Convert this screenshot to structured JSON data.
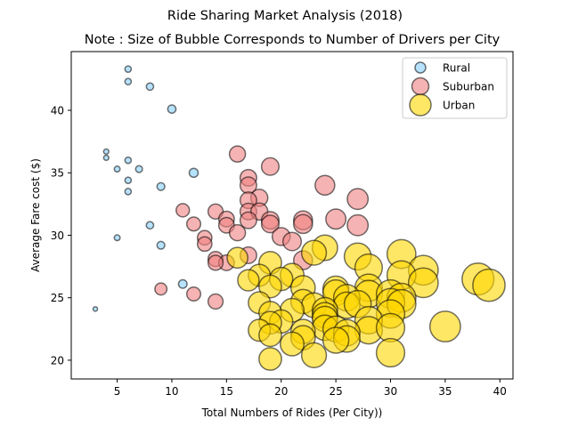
{
  "suptitle": "Ride Sharing Market Analysis (2018)",
  "chart_data": {
    "type": "scatter",
    "title": "Note : Size of Bubble Corresponds to Number of Drivers per City",
    "xlabel": "Total Numbers of Rides (Per City))",
    "ylabel": "Average Fare cost ($)",
    "xlim": [
      0.8,
      41.2
    ],
    "ylim": [
      18.5,
      44.7
    ],
    "xticks": [
      5,
      10,
      15,
      20,
      25,
      30,
      35,
      40
    ],
    "yticks": [
      20,
      25,
      30,
      35,
      40
    ],
    "grid": false,
    "legend_position": "top-right",
    "series": [
      {
        "name": "Rural",
        "color": "#87CEFA",
        "size_scale": 1.0,
        "points": [
          {
            "x": 6,
            "y": 43.3
          },
          {
            "x": 6,
            "y": 42.3
          },
          {
            "x": 8,
            "y": 41.9
          },
          {
            "x": 10,
            "y": 40.1
          },
          {
            "x": 4,
            "y": 36.7
          },
          {
            "x": 4,
            "y": 36.2
          },
          {
            "x": 6,
            "y": 36.0
          },
          {
            "x": 5,
            "y": 35.3
          },
          {
            "x": 7,
            "y": 35.3
          },
          {
            "x": 12,
            "y": 35.0
          },
          {
            "x": 6,
            "y": 34.4
          },
          {
            "x": 9,
            "y": 33.9
          },
          {
            "x": 6,
            "y": 33.5
          },
          {
            "x": 8,
            "y": 30.8
          },
          {
            "x": 5,
            "y": 29.8
          },
          {
            "x": 9,
            "y": 29.2
          },
          {
            "x": 11,
            "y": 26.1
          },
          {
            "x": 3,
            "y": 24.1
          }
        ]
      },
      {
        "name": "Suburban",
        "color": "#F08080",
        "size_scale": 1.55,
        "points": [
          {
            "x": 16,
            "y": 36.5
          },
          {
            "x": 19,
            "y": 35.5
          },
          {
            "x": 17,
            "y": 34.6
          },
          {
            "x": 24,
            "y": 34.0
          },
          {
            "x": 17,
            "y": 34.0
          },
          {
            "x": 18,
            "y": 33.0
          },
          {
            "x": 27,
            "y": 32.9
          },
          {
            "x": 17,
            "y": 32.8
          },
          {
            "x": 11,
            "y": 32.0
          },
          {
            "x": 14,
            "y": 31.9
          },
          {
            "x": 17,
            "y": 31.9
          },
          {
            "x": 18,
            "y": 31.9
          },
          {
            "x": 15,
            "y": 31.3
          },
          {
            "x": 17,
            "y": 31.2
          },
          {
            "x": 25,
            "y": 31.3
          },
          {
            "x": 19,
            "y": 31.2
          },
          {
            "x": 22,
            "y": 31.2
          },
          {
            "x": 19,
            "y": 30.9
          },
          {
            "x": 12,
            "y": 30.9
          },
          {
            "x": 22,
            "y": 30.9
          },
          {
            "x": 27,
            "y": 30.8
          },
          {
            "x": 15,
            "y": 30.8
          },
          {
            "x": 16,
            "y": 30.2
          },
          {
            "x": 20,
            "y": 29.9
          },
          {
            "x": 13,
            "y": 29.8
          },
          {
            "x": 21,
            "y": 29.5
          },
          {
            "x": 13,
            "y": 29.3
          },
          {
            "x": 17,
            "y": 28.4
          },
          {
            "x": 14,
            "y": 28.1
          },
          {
            "x": 22,
            "y": 28.0
          },
          {
            "x": 15,
            "y": 27.8
          },
          {
            "x": 14,
            "y": 27.8
          },
          {
            "x": 9,
            "y": 25.7
          },
          {
            "x": 12,
            "y": 25.3
          },
          {
            "x": 14,
            "y": 24.7
          }
        ]
      },
      {
        "name": "Urban",
        "color": "#FFD700",
        "size_scale": 2.0,
        "points": [
          {
            "x": 31,
            "y": 28.5
          },
          {
            "x": 24,
            "y": 29.0
          },
          {
            "x": 27,
            "y": 28.3
          },
          {
            "x": 23,
            "y": 28.6
          },
          {
            "x": 16,
            "y": 28.2
          },
          {
            "x": 28,
            "y": 27.4
          },
          {
            "x": 19,
            "y": 27.8
          },
          {
            "x": 33,
            "y": 27.2
          },
          {
            "x": 21,
            "y": 26.8
          },
          {
            "x": 18,
            "y": 26.8
          },
          {
            "x": 31,
            "y": 26.8
          },
          {
            "x": 20,
            "y": 26.5
          },
          {
            "x": 38,
            "y": 26.5
          },
          {
            "x": 17,
            "y": 26.4
          },
          {
            "x": 33,
            "y": 26.2
          },
          {
            "x": 39,
            "y": 26.0
          },
          {
            "x": 28,
            "y": 25.8
          },
          {
            "x": 19,
            "y": 25.9
          },
          {
            "x": 22,
            "y": 25.8
          },
          {
            "x": 25,
            "y": 25.7
          },
          {
            "x": 25,
            "y": 25.4
          },
          {
            "x": 28,
            "y": 25.3
          },
          {
            "x": 30,
            "y": 25.3
          },
          {
            "x": 31,
            "y": 25.0
          },
          {
            "x": 26,
            "y": 25.0
          },
          {
            "x": 22,
            "y": 24.7
          },
          {
            "x": 30,
            "y": 24.6
          },
          {
            "x": 18,
            "y": 24.6
          },
          {
            "x": 26,
            "y": 24.4
          },
          {
            "x": 23,
            "y": 24.4
          },
          {
            "x": 27,
            "y": 24.5
          },
          {
            "x": 31,
            "y": 24.5
          },
          {
            "x": 21,
            "y": 24.0
          },
          {
            "x": 24,
            "y": 24.0
          },
          {
            "x": 19,
            "y": 23.8
          },
          {
            "x": 24,
            "y": 23.6
          },
          {
            "x": 30,
            "y": 23.7
          },
          {
            "x": 24,
            "y": 23.3
          },
          {
            "x": 28,
            "y": 23.2
          },
          {
            "x": 20,
            "y": 23.1
          },
          {
            "x": 19,
            "y": 23.0
          },
          {
            "x": 24,
            "y": 22.6
          },
          {
            "x": 25,
            "y": 22.5
          },
          {
            "x": 28,
            "y": 22.4
          },
          {
            "x": 30,
            "y": 22.6
          },
          {
            "x": 35,
            "y": 22.7
          },
          {
            "x": 18,
            "y": 22.4
          },
          {
            "x": 22,
            "y": 22.3
          },
          {
            "x": 26,
            "y": 22.2
          },
          {
            "x": 19,
            "y": 22.0
          },
          {
            "x": 22,
            "y": 21.8
          },
          {
            "x": 26,
            "y": 21.7
          },
          {
            "x": 25,
            "y": 21.6
          },
          {
            "x": 21,
            "y": 21.3
          },
          {
            "x": 23,
            "y": 20.4
          },
          {
            "x": 30,
            "y": 20.6
          },
          {
            "x": 19,
            "y": 20.1
          }
        ]
      }
    ]
  }
}
